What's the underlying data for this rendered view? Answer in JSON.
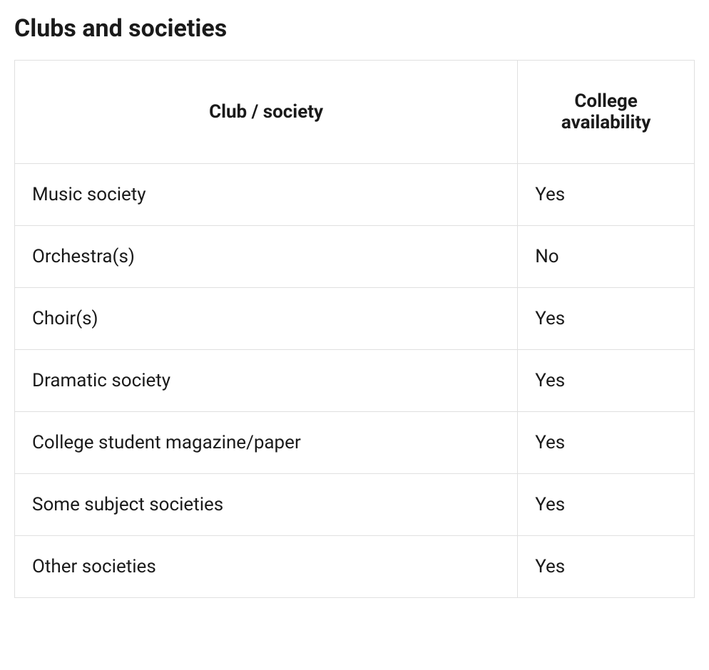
{
  "title": "Clubs and societies",
  "table": {
    "columns": [
      "Club / society",
      "College availability"
    ],
    "rows": [
      [
        "Music society",
        "Yes"
      ],
      [
        "Orchestra(s)",
        "No"
      ],
      [
        "Choir(s)",
        "Yes"
      ],
      [
        "Dramatic society",
        "Yes"
      ],
      [
        "College student magazine/paper",
        "Yes"
      ],
      [
        "Some subject societies",
        "Yes"
      ],
      [
        "Other societies",
        "Yes"
      ]
    ],
    "styling": {
      "border_color": "#e0e0e0",
      "background_color": "#ffffff",
      "text_color": "#1a1a1a",
      "title_fontsize": 34,
      "header_fontsize": 26,
      "cell_fontsize": 26,
      "column_widths": [
        "74%",
        "26%"
      ],
      "header_align": "center",
      "cell_align": "left"
    }
  }
}
